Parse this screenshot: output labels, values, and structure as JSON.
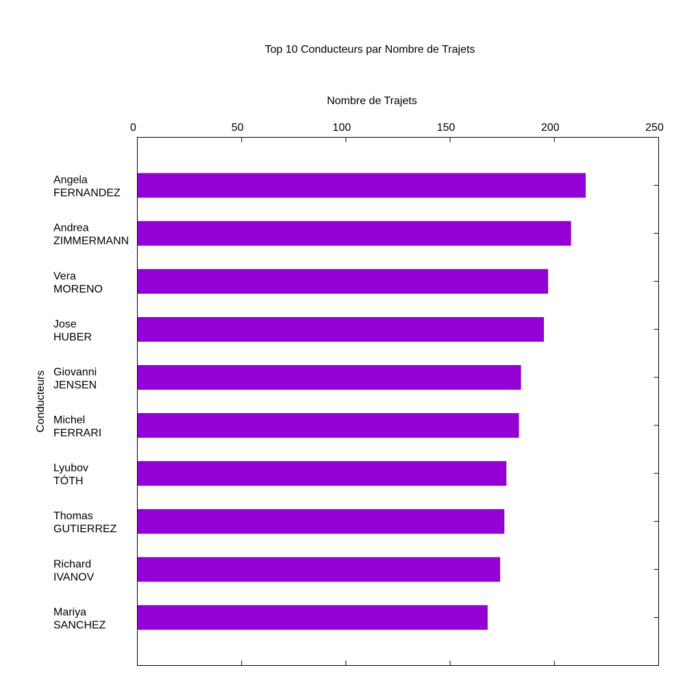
{
  "chart_data": {
    "type": "bar",
    "orientation": "horizontal",
    "title": "Top 10 Conducteurs par Nombre de Trajets",
    "xlabel": "Nombre de Trajets",
    "ylabel": "Conducteurs",
    "x_axis_position": "top",
    "xlim": [
      0,
      250
    ],
    "xticks": [
      "0",
      "50",
      "100",
      "150",
      "200",
      "250"
    ],
    "grid": false,
    "legend": "none",
    "bar_color": "#9400d3",
    "categories": [
      [
        "Angela",
        "FERNANDEZ"
      ],
      [
        "Andrea",
        "ZIMMERMANN"
      ],
      [
        "Vera",
        "MORENO"
      ],
      [
        "Jose",
        "HUBER"
      ],
      [
        "Giovanni",
        "JENSEN"
      ],
      [
        "Michel",
        "FERRARI"
      ],
      [
        "Lyubov",
        "TÓTH"
      ],
      [
        "Thomas",
        "GUTIERREZ"
      ],
      [
        "Richard",
        "IVANOV"
      ],
      [
        "Mariya",
        "SANCHEZ"
      ]
    ],
    "values": [
      215,
      208,
      197,
      195,
      184,
      183,
      177,
      176,
      174,
      168
    ]
  }
}
